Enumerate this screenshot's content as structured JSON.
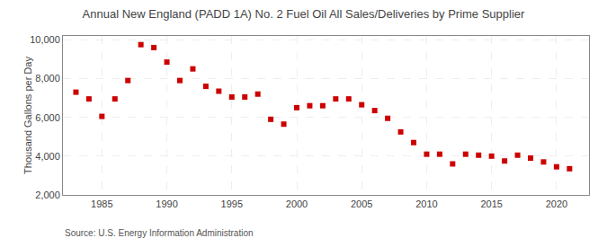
{
  "chart_data": {
    "type": "scatter",
    "title": "Annual New England (PADD 1A) No. 2 Fuel Oil All Sales/Deliveries by Prime Supplier",
    "ylabel": "Thousand Gallons per Day",
    "annotations": [
      "Source: U.S. Energy Information Administration"
    ],
    "x": [
      1983,
      1984,
      1985,
      1986,
      1987,
      1988,
      1989,
      1990,
      1991,
      1992,
      1993,
      1994,
      1995,
      1996,
      1997,
      1998,
      1999,
      2000,
      2001,
      2002,
      2003,
      2004,
      2005,
      2006,
      2007,
      2008,
      2009,
      2010,
      2011,
      2012,
      2013,
      2014,
      2015,
      2016,
      2017,
      2018,
      2019,
      2020,
      2021
    ],
    "values": [
      7300,
      6950,
      6050,
      6950,
      7900,
      9750,
      9600,
      8850,
      7900,
      8500,
      7600,
      7350,
      7050,
      7050,
      7200,
      5900,
      5650,
      6500,
      6600,
      6600,
      6950,
      6950,
      6650,
      6350,
      5950,
      5250,
      4700,
      4100,
      4100,
      3600,
      4100,
      4050,
      4000,
      3750,
      4050,
      3900,
      3700,
      3450,
      3350
    ],
    "color": "#cc0000",
    "marker": "square",
    "xlim": [
      1982,
      2022.5
    ],
    "ylim": [
      2000,
      10200
    ],
    "xticks": [
      1985,
      1990,
      1995,
      2000,
      2005,
      2010,
      2015,
      2020
    ],
    "yticks": [
      {
        "value": 2000,
        "label": "2,000"
      },
      {
        "value": 4000,
        "label": "4,000"
      },
      {
        "value": 6000,
        "label": "6,000"
      },
      {
        "value": 8000,
        "label": "8,000"
      },
      {
        "value": 10000,
        "label": "10,000"
      }
    ],
    "grid": true
  }
}
